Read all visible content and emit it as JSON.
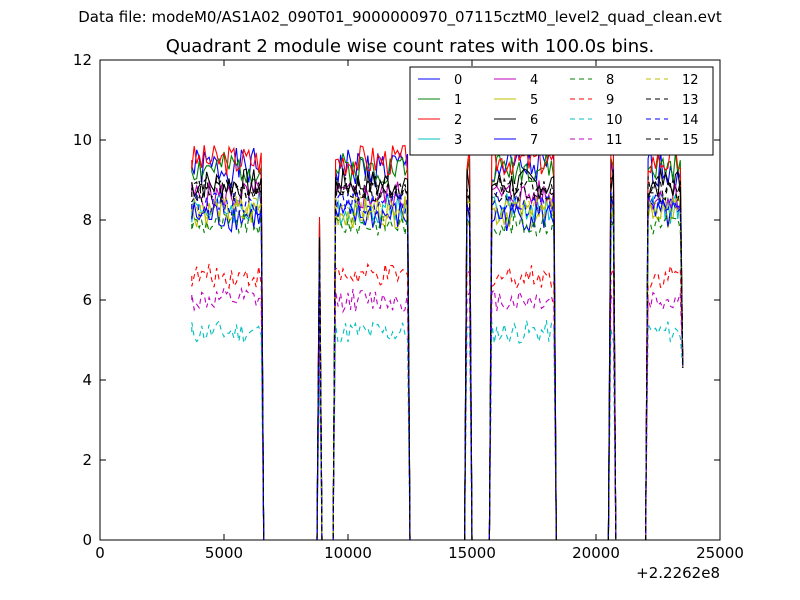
{
  "suptitle": "Data file: modeM0/AS1A02_090T01_9000000970_07115cztM0_level2_quad_clean.evt",
  "chart_data": {
    "type": "line",
    "title": "Quadrant 2 module wise count rates with 100.0s bins.",
    "xlabel": "",
    "ylabel": "",
    "x_offset_label": "+2.2262e8",
    "xlim": [
      0,
      25000
    ],
    "ylim": [
      0,
      12
    ],
    "x_ticks": [
      0,
      5000,
      10000,
      15000,
      20000,
      25000
    ],
    "y_ticks": [
      0,
      2,
      4,
      6,
      8,
      10,
      12
    ],
    "grid": false,
    "legend": {
      "placement": "top-right",
      "columns": 4
    },
    "segments": [
      [
        3700,
        6500
      ],
      [
        9500,
        12400
      ],
      [
        14800,
        14900
      ],
      [
        15800,
        18300
      ],
      [
        20600,
        20700
      ],
      [
        22100,
        23400
      ]
    ],
    "spikes": [
      [
        8850,
        8950
      ]
    ],
    "series": [
      {
        "name": "0",
        "style": "solid",
        "color": "#0000ff",
        "level": 9.3,
        "spread": 0.5
      },
      {
        "name": "1",
        "style": "solid",
        "color": "#008000",
        "level": 9.3,
        "spread": 0.4
      },
      {
        "name": "2",
        "style": "solid",
        "color": "#ff0000",
        "level": 9.5,
        "spread": 0.4
      },
      {
        "name": "3",
        "style": "solid",
        "color": "#00bfbf",
        "level": 8.3,
        "spread": 0.4
      },
      {
        "name": "4",
        "style": "solid",
        "color": "#bf00bf",
        "level": 8.6,
        "spread": 0.4
      },
      {
        "name": "5",
        "style": "solid",
        "color": "#bfbf00",
        "level": 8.2,
        "spread": 0.4
      },
      {
        "name": "6",
        "style": "solid",
        "color": "#000000",
        "level": 8.9,
        "spread": 0.4
      },
      {
        "name": "7",
        "style": "solid",
        "color": "#0000ff",
        "level": 8.1,
        "spread": 0.4
      },
      {
        "name": "8",
        "style": "dashed",
        "color": "#008000",
        "level": 7.9,
        "spread": 0.3
      },
      {
        "name": "9",
        "style": "dashed",
        "color": "#ff0000",
        "level": 6.6,
        "spread": 0.3
      },
      {
        "name": "10",
        "style": "dashed",
        "color": "#00bfbf",
        "level": 5.2,
        "spread": 0.3
      },
      {
        "name": "11",
        "style": "dashed",
        "color": "#bf00bf",
        "level": 6.0,
        "spread": 0.3
      },
      {
        "name": "12",
        "style": "dashed",
        "color": "#bfbf00",
        "level": 8.3,
        "spread": 0.3
      },
      {
        "name": "13",
        "style": "dashed",
        "color": "#000000",
        "level": 8.8,
        "spread": 0.3
      },
      {
        "name": "14",
        "style": "dashed",
        "color": "#0000ff",
        "level": 8.4,
        "spread": 0.3
      },
      {
        "name": "15",
        "style": "dashed",
        "color": "#000000",
        "level": 8.7,
        "spread": 0.3
      }
    ]
  }
}
